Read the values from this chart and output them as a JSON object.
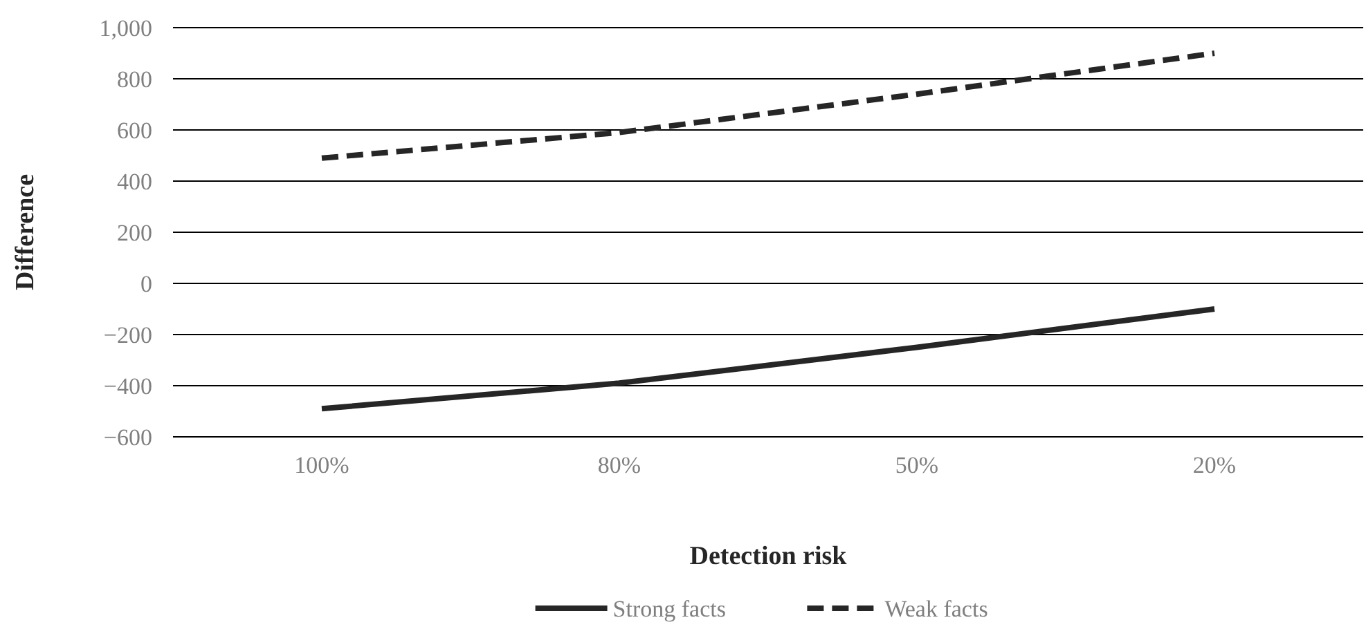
{
  "chart_data": {
    "type": "line",
    "xlabel": "Detection risk",
    "ylabel": "Difference",
    "categories": [
      "100%",
      "80%",
      "50%",
      "20%"
    ],
    "series": [
      {
        "name": "Strong facts",
        "color": "#262626",
        "line_style": "solid",
        "values": [
          -490,
          -390,
          -250,
          -100
        ]
      },
      {
        "name": "Weak facts",
        "color": "#262626",
        "line_style": "dashed",
        "values": [
          490,
          590,
          740,
          900
        ]
      }
    ],
    "ylim": [
      -600,
      1000
    ],
    "yticks": [
      {
        "value": -600,
        "label": "−600"
      },
      {
        "value": -400,
        "label": "−400"
      },
      {
        "value": -200,
        "label": "−200"
      },
      0,
      200,
      400,
      600,
      800,
      {
        "value": 1000,
        "label": "1,000"
      }
    ],
    "grid": "y",
    "legend": "bottom",
    "marker": "none"
  }
}
